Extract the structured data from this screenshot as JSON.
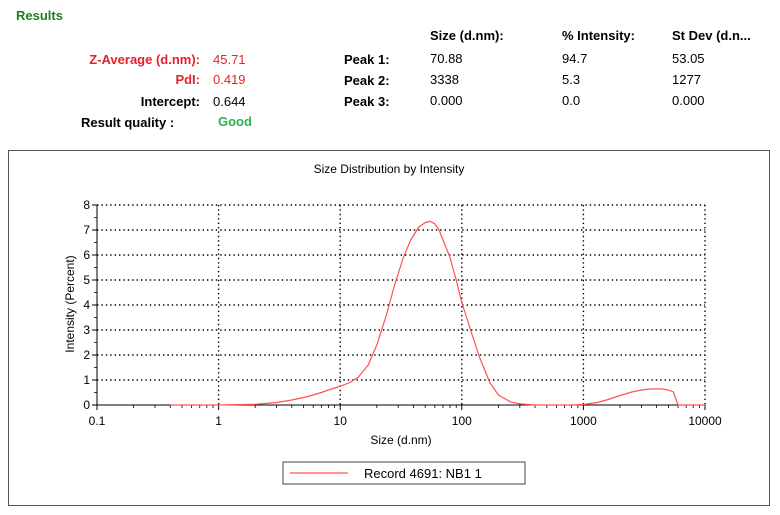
{
  "results": {
    "heading": "Results",
    "z_average_label": "Z-Average (d.nm):",
    "z_average_value": "45.71",
    "pdi_label": "PdI:",
    "pdi_value": "0.419",
    "intercept_label": "Intercept:",
    "intercept_value": "0.644",
    "quality_label": "Result quality :",
    "quality_value": "Good",
    "columns": [
      "Size (d.nm):",
      "% Intensity:",
      "St Dev (d.n..."
    ],
    "peaks": [
      {
        "label": "Peak 1:",
        "size": "70.88",
        "intensity": "94.7",
        "stdev": "53.05"
      },
      {
        "label": "Peak 2:",
        "size": "3338",
        "intensity": "5.3",
        "stdev": "1277"
      },
      {
        "label": "Peak 3:",
        "size": "0.000",
        "intensity": "0.0",
        "stdev": "0.000"
      }
    ]
  },
  "chart_data": {
    "type": "line",
    "title": "Size Distribution by Intensity",
    "xlabel": "Size (d.nm)",
    "ylabel": "Intensity (Percent)",
    "xscale": "log",
    "xlim": [
      0.1,
      10000
    ],
    "ylim": [
      0,
      8
    ],
    "xticks": [
      "0.1",
      "1",
      "10",
      "100",
      "1000",
      "10000"
    ],
    "yticks": [
      "0",
      "1",
      "2",
      "3",
      "4",
      "5",
      "6",
      "7",
      "8"
    ],
    "grid": true,
    "legend_position": "bottom-center",
    "series": [
      {
        "name": "Record 4691: NB1 1",
        "color": "#ff5050",
        "x": [
          0.4,
          1.0,
          2.0,
          3.0,
          4.0,
          5.0,
          6.0,
          7.0,
          8.0,
          10,
          12,
          14,
          17,
          20,
          24,
          28,
          33,
          38,
          44,
          50,
          55,
          60,
          65,
          70,
          80,
          90,
          100,
          120,
          140,
          170,
          200,
          250,
          300,
          350,
          400,
          450,
          500,
          600,
          800,
          1000,
          1300,
          1600,
          2000,
          2500,
          3000,
          3500,
          4000,
          4500,
          5000,
          5500,
          6000,
          10000
        ],
        "y": [
          0,
          0,
          0.03,
          0.1,
          0.2,
          0.3,
          0.4,
          0.5,
          0.6,
          0.75,
          0.9,
          1.1,
          1.6,
          2.4,
          3.6,
          4.8,
          5.9,
          6.6,
          7.1,
          7.3,
          7.35,
          7.25,
          7.0,
          6.6,
          5.9,
          5.0,
          4.1,
          2.9,
          1.9,
          0.9,
          0.4,
          0.13,
          0.05,
          0.02,
          0,
          0,
          0,
          0,
          0,
          0.02,
          0.1,
          0.22,
          0.38,
          0.52,
          0.6,
          0.64,
          0.65,
          0.64,
          0.6,
          0.52,
          0,
          0
        ]
      }
    ]
  }
}
